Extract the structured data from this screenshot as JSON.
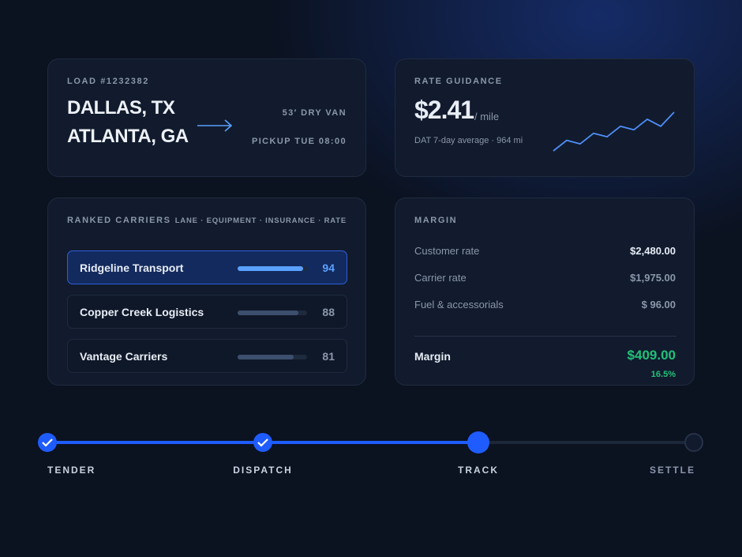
{
  "load": {
    "label": "LOAD #1232382",
    "origin": "DALLAS, TX",
    "destination": "ATLANTA, GA",
    "equipment": "53′  DRY VAN",
    "pickup": "PICKUP TUE 08:00"
  },
  "rate": {
    "label": "RATE GUIDANCE",
    "price": "$2.41",
    "unit": "/ mile",
    "note": "DAT 7-day average · 964 mi",
    "trend": [
      2.3,
      2.33,
      2.32,
      2.35,
      2.34,
      2.37,
      2.36,
      2.39,
      2.37,
      2.41
    ]
  },
  "carriers": {
    "label": "RANKED CARRIERS",
    "criteria": "LANE · EQUIPMENT · INSURANCE · RATE",
    "items": [
      {
        "name": "Ridgeline Transport",
        "score": 94
      },
      {
        "name": "Copper Creek Logistics",
        "score": 88
      },
      {
        "name": "Vantage Carriers",
        "score": 81
      }
    ]
  },
  "margin": {
    "label": "MARGIN",
    "rows": [
      {
        "label": "Customer rate",
        "value": "$2,480.00"
      },
      {
        "label": "Carrier rate",
        "value": "$1,975.00"
      },
      {
        "label": "Fuel & accessorials",
        "value": "$ 96.00"
      }
    ],
    "total_label": "Margin",
    "total_value": "$409.00",
    "percent": "16.5%"
  },
  "steps": [
    "TENDER",
    "DISPATCH",
    "TRACK",
    "SETTLE"
  ]
}
